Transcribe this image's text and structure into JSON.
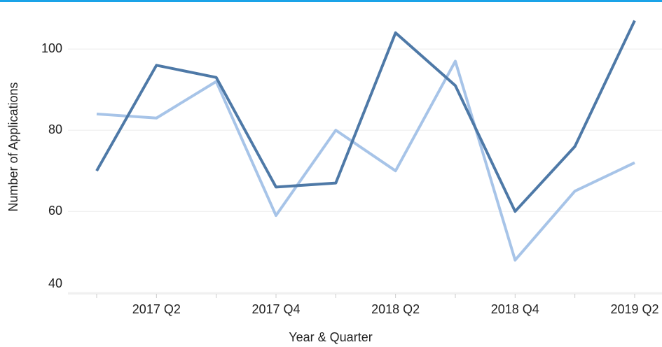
{
  "chart_data": {
    "type": "line",
    "x_label": "Year & Quarter",
    "y_label": "Number of Applications",
    "categories": [
      null,
      "2017 Q2",
      null,
      "2017 Q4",
      null,
      "2018 Q2",
      null,
      "2018 Q4",
      null,
      "2019 Q2"
    ],
    "series": [
      {
        "color": "#a7c4e8",
        "values": [
          84,
          83,
          92,
          59,
          80,
          70,
          97,
          48,
          65,
          72
        ]
      },
      {
        "color": "#4e79a7",
        "values": [
          70,
          96,
          93,
          66,
          67,
          104,
          91,
          60,
          76,
          107
        ]
      }
    ],
    "ylim": [
      39.7,
      110.7
    ],
    "yticks": [
      40,
      60,
      80,
      100
    ],
    "grid": true
  }
}
